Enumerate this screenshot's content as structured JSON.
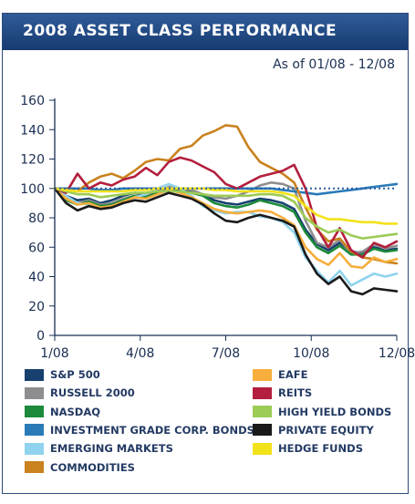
{
  "header": {
    "title": "2008 ASSET CLASS PERFORMANCE",
    "subtitle": "As of 01/08 - 12/08"
  },
  "chart_data": {
    "type": "line",
    "title": "2008 ASSET CLASS PERFORMANCE",
    "subtitle": "As of 01/08 - 12/08",
    "xlabel": "",
    "ylabel": "",
    "x_ticks": [
      "1/08",
      "4/08",
      "7/08",
      "10/08",
      "12/08"
    ],
    "ylim": [
      0,
      160
    ],
    "y_ticks": [
      "0",
      "20",
      "40",
      "60",
      "80",
      "100",
      "120",
      "140",
      "160"
    ],
    "grid": false,
    "baseline": 100,
    "legend_position": "bottom",
    "series": [
      {
        "name": "S&P 500",
        "color": "#17406e",
        "values": [
          100,
          95,
          92,
          93,
          90,
          92,
          95,
          97,
          96,
          99,
          100,
          99,
          98,
          96,
          92,
          90,
          89,
          91,
          93,
          92,
          90,
          86,
          72,
          62,
          58,
          63,
          57,
          56,
          60,
          58,
          59
        ]
      },
      {
        "name": "RUSSELL 2000",
        "color": "#8e8e90",
        "values": [
          100,
          93,
          90,
          92,
          89,
          90,
          93,
          95,
          95,
          98,
          101,
          100,
          99,
          96,
          94,
          93,
          95,
          98,
          102,
          104,
          103,
          100,
          78,
          63,
          60,
          65,
          56,
          57,
          62,
          59,
          61
        ]
      },
      {
        "name": "NASDAQ",
        "color": "#1c8a3a",
        "values": [
          100,
          92,
          89,
          91,
          88,
          89,
          92,
          95,
          94,
          97,
          99,
          98,
          97,
          95,
          90,
          88,
          87,
          89,
          92,
          90,
          88,
          84,
          70,
          60,
          56,
          61,
          55,
          55,
          59,
          57,
          58
        ]
      },
      {
        "name": "INVESTMENT GRADE CORP. BONDS",
        "color": "#2a7ab8",
        "values": [
          100,
          100,
          100,
          100,
          99,
          99,
          100,
          100,
          100,
          100,
          100,
          100,
          100,
          100,
          100,
          100,
          100,
          100,
          100,
          100,
          99,
          98,
          97,
          96,
          97,
          98,
          99,
          100,
          101,
          102,
          103
        ]
      },
      {
        "name": "EMERGING MARKETS",
        "color": "#8fd3ee",
        "values": [
          100,
          95,
          90,
          89,
          86,
          87,
          90,
          94,
          96,
          100,
          103,
          100,
          95,
          88,
          85,
          83,
          84,
          84,
          81,
          80,
          77,
          70,
          53,
          44,
          36,
          44,
          34,
          38,
          42,
          40,
          42
        ]
      },
      {
        "name": "COMMODITIES",
        "color": "#c9821e",
        "values": [
          100,
          99,
          98,
          104,
          108,
          110,
          107,
          112,
          118,
          120,
          119,
          127,
          129,
          136,
          139,
          143,
          142,
          128,
          118,
          114,
          110,
          104,
          87,
          72,
          64,
          66,
          57,
          53,
          52,
          50,
          49
        ]
      },
      {
        "name": "EAFE",
        "color": "#f7ae3c",
        "values": [
          100,
          93,
          89,
          90,
          87,
          88,
          91,
          94,
          93,
          96,
          99,
          97,
          94,
          90,
          86,
          84,
          83,
          84,
          85,
          84,
          80,
          75,
          60,
          52,
          48,
          56,
          47,
          46,
          53,
          50,
          52
        ]
      },
      {
        "name": "REITS",
        "color": "#b31f3d",
        "values": [
          100,
          97,
          110,
          100,
          104,
          102,
          106,
          108,
          114,
          109,
          118,
          121,
          119,
          115,
          111,
          103,
          100,
          104,
          108,
          110,
          112,
          116,
          100,
          73,
          60,
          73,
          58,
          53,
          63,
          60,
          64
        ]
      },
      {
        "name": "HIGH YIELD BONDS",
        "color": "#9ccb56",
        "values": [
          100,
          98,
          96,
          96,
          94,
          95,
          96,
          97,
          97,
          98,
          98,
          98,
          97,
          96,
          95,
          95,
          95,
          95,
          96,
          96,
          95,
          91,
          80,
          74,
          70,
          72,
          68,
          66,
          67,
          68,
          69
        ]
      },
      {
        "name": "PRIVATE EQUITY",
        "color": "#1a1a1a",
        "values": [
          100,
          90,
          85,
          88,
          86,
          87,
          90,
          92,
          91,
          94,
          97,
          95,
          93,
          89,
          83,
          78,
          77,
          80,
          82,
          80,
          78,
          74,
          55,
          42,
          35,
          40,
          30,
          28,
          32,
          31,
          30
        ]
      },
      {
        "name": "HEDGE FUNDS",
        "color": "#f2e21a",
        "values": [
          100,
          99,
          98,
          98,
          98,
          98,
          98,
          99,
          99,
          100,
          100,
          100,
          100,
          100,
          99,
          99,
          98,
          98,
          98,
          98,
          97,
          95,
          88,
          82,
          79,
          79,
          78,
          77,
          77,
          76,
          76
        ]
      }
    ]
  },
  "legend": {
    "left": [
      "S&P 500",
      "RUSSELL 2000",
      "NASDAQ",
      "INVESTMENT GRADE CORP. BONDS",
      "EMERGING MARKETS",
      "COMMODITIES"
    ],
    "right": [
      "EAFE",
      "REITS",
      "HIGH YIELD BONDS",
      "PRIVATE EQUITY",
      "HEDGE FUNDS"
    ]
  }
}
